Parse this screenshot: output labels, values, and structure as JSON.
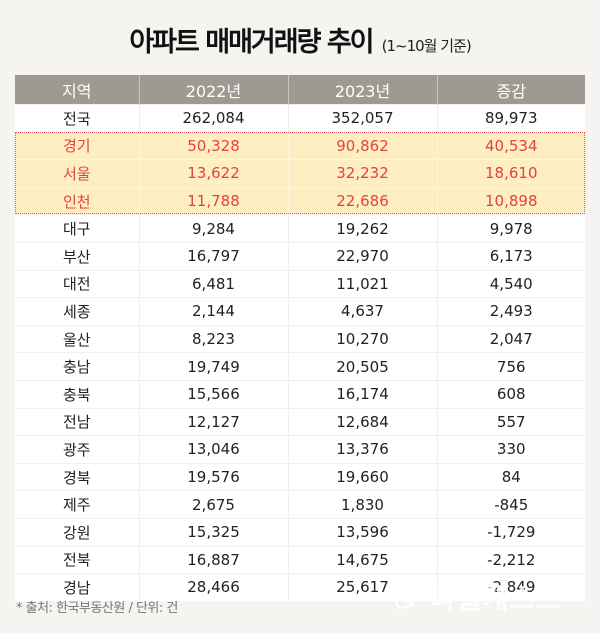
{
  "title": {
    "main": "아파트 매매거래량 추이",
    "sub": "(1~10월 기준)"
  },
  "table": {
    "headers": [
      "지역",
      "2022년",
      "2023년",
      "증감"
    ],
    "rows": [
      {
        "region": "전국",
        "y2022": "262,084",
        "y2023": "352,057",
        "change": "89,973",
        "highlight": false
      },
      {
        "region": "경기",
        "y2022": "50,328",
        "y2023": "90,862",
        "change": "40,534",
        "highlight": true
      },
      {
        "region": "서울",
        "y2022": "13,622",
        "y2023": "32,232",
        "change": "18,610",
        "highlight": true
      },
      {
        "region": "인천",
        "y2022": "11,788",
        "y2023": "22,686",
        "change": "10,898",
        "highlight": true
      },
      {
        "region": "대구",
        "y2022": "9,284",
        "y2023": "19,262",
        "change": "9,978",
        "highlight": false
      },
      {
        "region": "부산",
        "y2022": "16,797",
        "y2023": "22,970",
        "change": "6,173",
        "highlight": false
      },
      {
        "region": "대전",
        "y2022": "6,481",
        "y2023": "11,021",
        "change": "4,540",
        "highlight": false
      },
      {
        "region": "세종",
        "y2022": "2,144",
        "y2023": "4,637",
        "change": "2,493",
        "highlight": false
      },
      {
        "region": "울산",
        "y2022": "8,223",
        "y2023": "10,270",
        "change": "2,047",
        "highlight": false
      },
      {
        "region": "충남",
        "y2022": "19,749",
        "y2023": "20,505",
        "change": "756",
        "highlight": false
      },
      {
        "region": "충북",
        "y2022": "15,566",
        "y2023": "16,174",
        "change": "608",
        "highlight": false
      },
      {
        "region": "전남",
        "y2022": "12,127",
        "y2023": "12,684",
        "change": "557",
        "highlight": false
      },
      {
        "region": "광주",
        "y2022": "13,046",
        "y2023": "13,376",
        "change": "330",
        "highlight": false
      },
      {
        "region": "경북",
        "y2022": "19,576",
        "y2023": "19,660",
        "change": "84",
        "highlight": false
      },
      {
        "region": "제주",
        "y2022": "2,675",
        "y2023": "1,830",
        "change": "-845",
        "highlight": false
      },
      {
        "region": "강원",
        "y2022": "15,325",
        "y2023": "13,596",
        "change": "-1,729",
        "highlight": false
      },
      {
        "region": "전북",
        "y2022": "16,887",
        "y2023": "14,675",
        "change": "-2,212",
        "highlight": false
      },
      {
        "region": "경남",
        "y2022": "28,466",
        "y2023": "25,617",
        "change": "-2,849",
        "highlight": false
      }
    ]
  },
  "footnote": "* 출처: 한국부동산원 / 단위: 건",
  "watermark": {
    "text": "리얼캐스트",
    "icon": "realcast-logo-icon"
  },
  "colors": {
    "background": "#f6f4f0",
    "header_bg": "#9e9a92",
    "highlight_bg": "#fdeec3",
    "highlight_text": "#e8423a",
    "highlight_border": "#ec5a5a"
  },
  "chart_data": {
    "type": "table",
    "title": "아파트 매매거래량 추이 (1~10월 기준)",
    "columns": [
      "지역",
      "2022년",
      "2023년",
      "증감"
    ],
    "unit": "건",
    "source": "한국부동산원",
    "highlighted_rows": [
      "경기",
      "서울",
      "인천"
    ],
    "categories": [
      "전국",
      "경기",
      "서울",
      "인천",
      "대구",
      "부산",
      "대전",
      "세종",
      "울산",
      "충남",
      "충북",
      "전남",
      "광주",
      "경북",
      "제주",
      "강원",
      "전북",
      "경남"
    ],
    "series": [
      {
        "name": "2022년",
        "values": [
          262084,
          50328,
          13622,
          11788,
          9284,
          16797,
          6481,
          2144,
          8223,
          19749,
          15566,
          12127,
          13046,
          19576,
          2675,
          15325,
          16887,
          28466
        ]
      },
      {
        "name": "2023년",
        "values": [
          352057,
          90862,
          32232,
          22686,
          19262,
          22970,
          11021,
          4637,
          10270,
          20505,
          16174,
          12684,
          13376,
          19660,
          1830,
          13596,
          14675,
          25617
        ]
      },
      {
        "name": "증감",
        "values": [
          89973,
          40534,
          18610,
          10898,
          9978,
          6173,
          4540,
          2493,
          2047,
          756,
          608,
          557,
          330,
          84,
          -845,
          -1729,
          -2212,
          -2849
        ]
      }
    ]
  }
}
